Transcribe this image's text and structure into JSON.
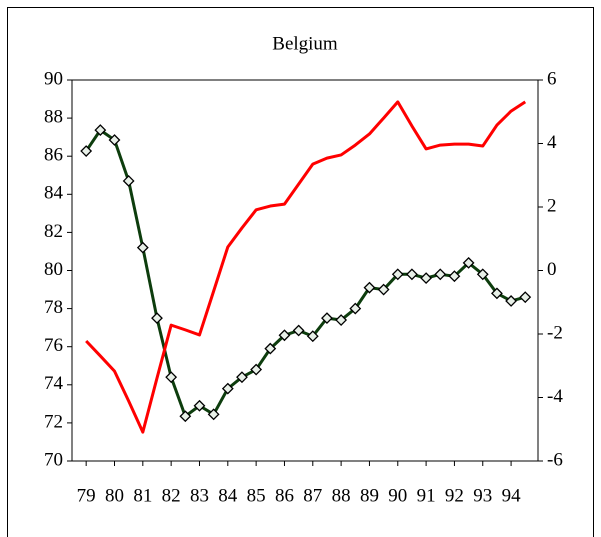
{
  "chart_data": {
    "type": "line",
    "title": "Belgium",
    "x": [
      79,
      79.5,
      80,
      80.5,
      81,
      81.5,
      82,
      82.5,
      83,
      83.5,
      84,
      84.5,
      85,
      85.5,
      86,
      86.5,
      87,
      87.5,
      88,
      88.5,
      89,
      89.5,
      90,
      90.5,
      91,
      91.5,
      92,
      92.5,
      93,
      93.5,
      94,
      94.5
    ],
    "series": [
      {
        "color": "#0d3d0d",
        "marker": "diamond",
        "axis": "y",
        "values": [
          86.27,
          87.37,
          86.85,
          84.7,
          81.2,
          77.5,
          74.4,
          72.35,
          72.9,
          72.45,
          73.8,
          74.4,
          74.8,
          75.9,
          76.6,
          76.85,
          76.55,
          77.5,
          77.4,
          78.0,
          79.1,
          79.0,
          79.8,
          79.8,
          79.6,
          79.8,
          79.7,
          80.4,
          79.8,
          78.8,
          78.4,
          78.6
        ]
      },
      {
        "color": "#ff0000",
        "axis": "y2",
        "values": [
          -2.22,
          -2.69,
          -3.17,
          -4.11,
          -5.09,
          -3.39,
          -1.72,
          -1.87,
          -2.03,
          -0.65,
          0.74,
          1.34,
          1.91,
          2.03,
          2.09,
          2.72,
          3.35,
          3.54,
          3.64,
          3.95,
          4.3,
          4.8,
          5.31,
          4.55,
          3.83,
          3.95,
          3.98,
          3.98,
          3.92,
          4.58,
          5.02,
          5.31
        ]
      }
    ],
    "xlim": [
      78.5,
      94.95
    ],
    "xticks": [
      79,
      80,
      81,
      82,
      83,
      84,
      85,
      86,
      87,
      88,
      89,
      90,
      91,
      92,
      93,
      94
    ],
    "ylim": [
      70,
      90
    ],
    "yticks": [
      70,
      72,
      74,
      76,
      78,
      80,
      82,
      84,
      86,
      88,
      90
    ],
    "y2lim": [
      -6,
      6
    ],
    "y2ticks": [
      -6,
      -4,
      -2,
      0,
      2,
      4,
      6
    ]
  }
}
